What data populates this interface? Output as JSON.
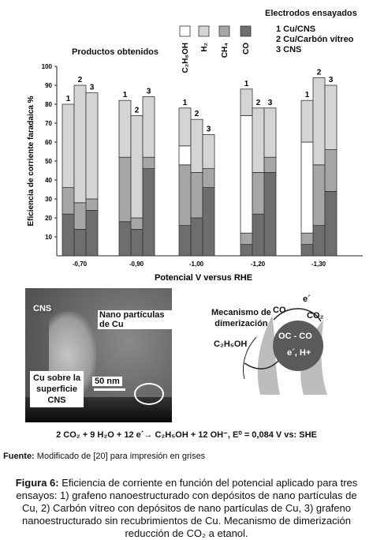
{
  "legend": {
    "title": "Electrodos ensayados",
    "electrodes": [
      "1 Cu/CNS",
      "2 Cu/Carbón vítreo",
      "3 CNS"
    ],
    "products_label": "Productos obtenidos",
    "products": [
      {
        "label": "C₂H₆OH",
        "color": "#ffffff"
      },
      {
        "label": "H₂",
        "color": "#d4d4d4"
      },
      {
        "label": "CH₄",
        "color": "#a6a6a6"
      },
      {
        "label": "CO",
        "color": "#6e6e6e"
      }
    ]
  },
  "chart_data": {
    "type": "bar",
    "stacked": true,
    "ylabel": "Eficiencia de corriente faradaica %",
    "xlabel": "Potencial V versus RHE",
    "ylim": [
      0,
      100
    ],
    "yticks": [
      10,
      20,
      30,
      40,
      50,
      60,
      70,
      80,
      90,
      100
    ],
    "categories": [
      "-0,70",
      "-0,90",
      "-1,00",
      "-1,20",
      "-1,30"
    ],
    "bar_labels": [
      "1",
      "2",
      "3"
    ],
    "series": [
      {
        "name": "CO",
        "color": "#6e6e6e",
        "values": [
          [
            22,
            14,
            24
          ],
          [
            18,
            14,
            46
          ],
          [
            16,
            20,
            36
          ],
          [
            6,
            22,
            44
          ],
          [
            6,
            16,
            34
          ]
        ]
      },
      {
        "name": "CH₄",
        "color": "#a6a6a6",
        "values": [
          [
            14,
            14,
            6
          ],
          [
            34,
            6,
            6
          ],
          [
            32,
            24,
            10
          ],
          [
            6,
            22,
            8
          ],
          [
            6,
            32,
            22
          ]
        ]
      },
      {
        "name": "C₂H₆OH",
        "color": "#ffffff",
        "values": [
          [
            0,
            0,
            0
          ],
          [
            0,
            0,
            0
          ],
          [
            10,
            0,
            0
          ],
          [
            62,
            0,
            0
          ],
          [
            48,
            0,
            0
          ]
        ]
      },
      {
        "name": "H₂",
        "color": "#d4d4d4",
        "values": [
          [
            44,
            62,
            56
          ],
          [
            30,
            54,
            32
          ],
          [
            20,
            28,
            18
          ],
          [
            14,
            34,
            26
          ],
          [
            22,
            46,
            34
          ]
        ]
      }
    ]
  },
  "micrograph": {
    "cns": "CNS",
    "nano": "Nano partículas de Cu",
    "cu_surface": [
      "Cu sobre la",
      "superficie",
      "CNS"
    ],
    "scale": "50 nm"
  },
  "mechanism": {
    "title": [
      "Mecanismo de",
      "dimerización"
    ],
    "electron": "e´",
    "co": "CO",
    "co2": "CO₂",
    "center": "OC - CO",
    "center2": "e´, H+",
    "ethanol": "C₂H₅OH"
  },
  "equation": "2 CO₂ + 9 H₂O + 12 e´→ C₂H₅OH + 12 OH⁻, E⁰ = 0,084 V vs: SHE",
  "source": {
    "label": "Fuente:",
    "text": " Modificado de [20] para impresión en grises"
  },
  "caption": {
    "label": "Figura 6:",
    "lines": [
      " Eficiencia de corriente en función del potencial aplicado para tres",
      "ensayos: 1) grafeno nanoestructurado con depósitos de nano partículas de",
      "Cu, 2) Carbón vítreo con depósitos de nano partículas de Cu, 3) grafeno",
      "nanoestructurado sin recubrimientos de Cu. Mecanismo de dimerización",
      "reducción de CO₂ a etanol."
    ]
  }
}
